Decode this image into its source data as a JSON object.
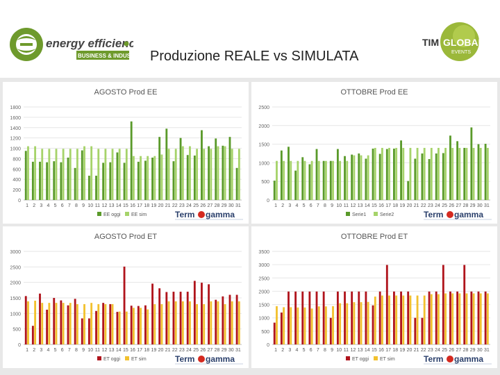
{
  "header": {
    "title": "Produzione REALE vs SIMULATA",
    "left_logo": {
      "icon": "energy-efficiency-logo",
      "name": "energy efficiency",
      "tagline": "BUSINESS & INDUSTRY"
    },
    "right_logo": {
      "icon": "timglobal-events-logo",
      "name_a": "TIM",
      "name_b": "GLOBAL",
      "sub": "EVENTS"
    },
    "brand_mark": "Term gamma",
    "colors": {
      "green_dark": "#5a9a2a",
      "green_light": "#a6d36a",
      "red_dark": "#b0141c",
      "yellow": "#f2c12e",
      "brand_red": "#d42a20"
    }
  },
  "chart_data": [
    {
      "type": "bar",
      "title": "AGOSTO Prod EE",
      "categories": [
        "1",
        "2",
        "3",
        "4",
        "5",
        "6",
        "7",
        "8",
        "9",
        "10",
        "11",
        "12",
        "13",
        "14",
        "15",
        "16",
        "17",
        "18",
        "19",
        "20",
        "21",
        "22",
        "23",
        "24",
        "25",
        "26",
        "27",
        "28",
        "29",
        "30",
        "31"
      ],
      "ylim": [
        0,
        1800
      ],
      "yticks": [
        0,
        200,
        400,
        600,
        800,
        1000,
        1200,
        1400,
        1600,
        1800
      ],
      "series": [
        {
          "name": "EE oggi",
          "color": "#5a9a2a",
          "values": [
            950,
            740,
            740,
            730,
            750,
            730,
            820,
            620,
            960,
            470,
            470,
            720,
            730,
            920,
            720,
            1520,
            740,
            760,
            820,
            1220,
            1380,
            750,
            1200,
            870,
            860,
            1350,
            1040,
            1190,
            1050,
            1220,
            620
          ]
        },
        {
          "name": "EE sim",
          "color": "#a6d36a",
          "values": [
            1040,
            1040,
            990,
            990,
            990,
            990,
            990,
            990,
            1040,
            1040,
            990,
            990,
            990,
            990,
            990,
            850,
            850,
            850,
            850,
            880,
            990,
            990,
            1040,
            1040,
            990,
            990,
            990,
            1040,
            1040,
            990,
            990
          ]
        }
      ]
    },
    {
      "type": "bar",
      "title": "OTTOBRE Prod EE",
      "categories": [
        "1",
        "2",
        "3",
        "4",
        "5",
        "6",
        "7",
        "8",
        "9",
        "10",
        "11",
        "12",
        "13",
        "14",
        "15",
        "16",
        "17",
        "18",
        "19",
        "20",
        "21",
        "22",
        "23",
        "24",
        "25",
        "26",
        "27",
        "28",
        "29",
        "30",
        "31"
      ],
      "ylim": [
        0,
        2500
      ],
      "yticks": [
        0,
        500,
        1000,
        1500,
        2000,
        2500
      ],
      "series": [
        {
          "name": "Serie1",
          "color": "#5a9a2a",
          "values": [
            520,
            1330,
            1430,
            790,
            1150,
            960,
            1370,
            1050,
            1050,
            1370,
            1180,
            1220,
            1250,
            1110,
            1380,
            1240,
            1370,
            1380,
            1600,
            510,
            1110,
            1250,
            1100,
            1250,
            1260,
            1730,
            1580,
            1400,
            1950,
            1500,
            1510
          ]
        },
        {
          "name": "Serie2",
          "color": "#a6d36a",
          "values": [
            1050,
            1050,
            1050,
            1050,
            1050,
            1050,
            1050,
            1050,
            1050,
            1050,
            1050,
            1200,
            1200,
            1200,
            1400,
            1400,
            1400,
            1400,
            1400,
            1400,
            1400,
            1400,
            1400,
            1400,
            1400,
            1400,
            1400,
            1400,
            1400,
            1400,
            1400
          ]
        }
      ]
    },
    {
      "type": "bar",
      "title": "AGOSTO Prod ET",
      "categories": [
        "1",
        "2",
        "3",
        "4",
        "5",
        "6",
        "7",
        "8",
        "9",
        "10",
        "11",
        "12",
        "13",
        "14",
        "15",
        "16",
        "17",
        "18",
        "19",
        "20",
        "21",
        "22",
        "23",
        "24",
        "25",
        "26",
        "27",
        "28",
        "29",
        "30",
        "31"
      ],
      "ylim": [
        0,
        3000
      ],
      "yticks": [
        0,
        500,
        1000,
        1500,
        2000,
        2500,
        3000
      ],
      "series": [
        {
          "name": "ET oggi",
          "color": "#b0141c",
          "values": [
            1560,
            600,
            1640,
            1120,
            1500,
            1420,
            1260,
            1470,
            840,
            840,
            1080,
            1340,
            1300,
            1050,
            2510,
            1250,
            1240,
            1260,
            1960,
            1810,
            1690,
            1700,
            1700,
            1700,
            2050,
            1990,
            1940,
            1440,
            1550,
            1600,
            1600
          ]
        },
        {
          "name": "ET sim",
          "color": "#f2c12e",
          "values": [
            1390,
            1410,
            1340,
            1340,
            1340,
            1340,
            1340,
            1300,
            1300,
            1340,
            1300,
            1300,
            1300,
            1060,
            1060,
            1180,
            1180,
            1130,
            1300,
            1300,
            1390,
            1390,
            1390,
            1390,
            1300,
            1300,
            1390,
            1390,
            1300,
            1390,
            1390
          ]
        }
      ]
    },
    {
      "type": "bar",
      "title": "OTTOBRE Prod ET",
      "categories": [
        "1",
        "2",
        "3",
        "4",
        "5",
        "6",
        "7",
        "8",
        "9",
        "10",
        "11",
        "12",
        "13",
        "14",
        "15",
        "16",
        "17",
        "18",
        "19",
        "20",
        "21",
        "22",
        "23",
        "24",
        "25",
        "26",
        "27",
        "28",
        "29",
        "30",
        "31"
      ],
      "ylim": [
        0,
        3500
      ],
      "yticks": [
        0,
        500,
        1000,
        1500,
        2000,
        2500,
        3000,
        3500
      ],
      "series": [
        {
          "name": "ET oggi",
          "color": "#b0141c",
          "values": [
            820,
            1200,
            1990,
            1990,
            1990,
            1990,
            1990,
            1990,
            1000,
            1990,
            1990,
            1990,
            1990,
            1990,
            1470,
            1990,
            2990,
            1990,
            1990,
            1990,
            1000,
            1000,
            1990,
            1990,
            2990,
            1990,
            1990,
            2990,
            1990,
            1990,
            1990
          ]
        },
        {
          "name": "ET sim",
          "color": "#f2c12e",
          "values": [
            1440,
            1400,
            1400,
            1390,
            1390,
            1350,
            1430,
            1430,
            1440,
            1550,
            1550,
            1590,
            1590,
            1600,
            1800,
            1840,
            1840,
            1840,
            1840,
            1840,
            1840,
            1840,
            1890,
            1890,
            1920,
            1920,
            1920,
            1920,
            1920,
            1920,
            1920
          ]
        }
      ]
    }
  ]
}
